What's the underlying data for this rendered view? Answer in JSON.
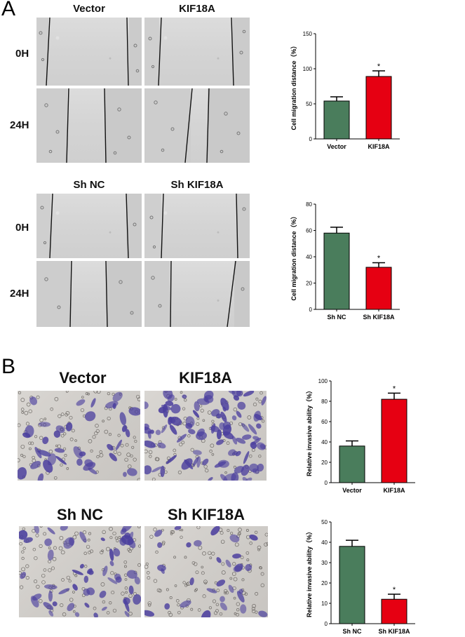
{
  "figure": {
    "panel_a_label": "A",
    "panel_b_label": "B"
  },
  "panel_a": {
    "top": {
      "col1": "Vector",
      "col2": "KIF18A",
      "row1": "0H",
      "row2": "24H"
    },
    "bottom": {
      "col1": "Sh NC",
      "col2": "Sh KIF18A",
      "row1": "0H",
      "row2": "24H"
    }
  },
  "panel_b": {
    "top": {
      "col1": "Vector",
      "col2": "KIF18A"
    },
    "bottom": {
      "col1": "Sh NC",
      "col2": "Sh KIF18A"
    }
  },
  "colors": {
    "control": "#4a7d5c",
    "treatment": "#e60012",
    "invasion_stain": "#4b3f9e"
  },
  "chart_data": [
    {
      "id": "chart-a1",
      "type": "bar",
      "categories": [
        "Vector",
        "KIF18A"
      ],
      "values": [
        54,
        89
      ],
      "errors": [
        6,
        8
      ],
      "significance": [
        "",
        "*"
      ],
      "ylabel": "Cell migration distance（%）",
      "ylim": [
        0,
        150
      ],
      "yticks": [
        0,
        50,
        100,
        150
      ],
      "ytick_labels": [
        "0",
        "50",
        "100",
        "150"
      ],
      "colors": [
        "#4a7d5c",
        "#e60012"
      ]
    },
    {
      "id": "chart-a2",
      "type": "bar",
      "categories": [
        "Sh NC",
        "Sh KIF18A"
      ],
      "values": [
        58,
        32
      ],
      "errors": [
        4.5,
        3.5
      ],
      "significance": [
        "",
        "*"
      ],
      "ylabel": "Cell migration distance（%）",
      "ylim": [
        0,
        80
      ],
      "yticks": [
        0,
        20,
        40,
        60,
        80
      ],
      "ytick_labels": [
        "0",
        "20",
        "40",
        "60",
        "80"
      ],
      "colors": [
        "#4a7d5c",
        "#e60012"
      ]
    },
    {
      "id": "chart-b1",
      "type": "bar",
      "categories": [
        "Vector",
        "KIF18A"
      ],
      "values": [
        36,
        82
      ],
      "errors": [
        5,
        6
      ],
      "significance": [
        "",
        "*"
      ],
      "ylabel": "Relative invasive ability（%）",
      "ylim": [
        0,
        100
      ],
      "yticks": [
        0,
        20,
        40,
        60,
        80,
        100
      ],
      "ytick_labels": [
        "0",
        "20",
        "40",
        "60",
        "80",
        "100"
      ],
      "colors": [
        "#4a7d5c",
        "#e60012"
      ]
    },
    {
      "id": "chart-b2",
      "type": "bar",
      "categories": [
        "Sh NC",
        "Sh KIF18A"
      ],
      "values": [
        38,
        12
      ],
      "errors": [
        3,
        2.5
      ],
      "significance": [
        "",
        "*"
      ],
      "ylabel": "Relative invasive ability（%）",
      "ylim": [
        0,
        50
      ],
      "yticks": [
        0,
        10,
        20,
        30,
        40,
        50
      ],
      "ytick_labels": [
        "0",
        "10",
        "20",
        "30",
        "40",
        "50"
      ],
      "colors": [
        "#4a7d5c",
        "#e60012"
      ]
    }
  ]
}
